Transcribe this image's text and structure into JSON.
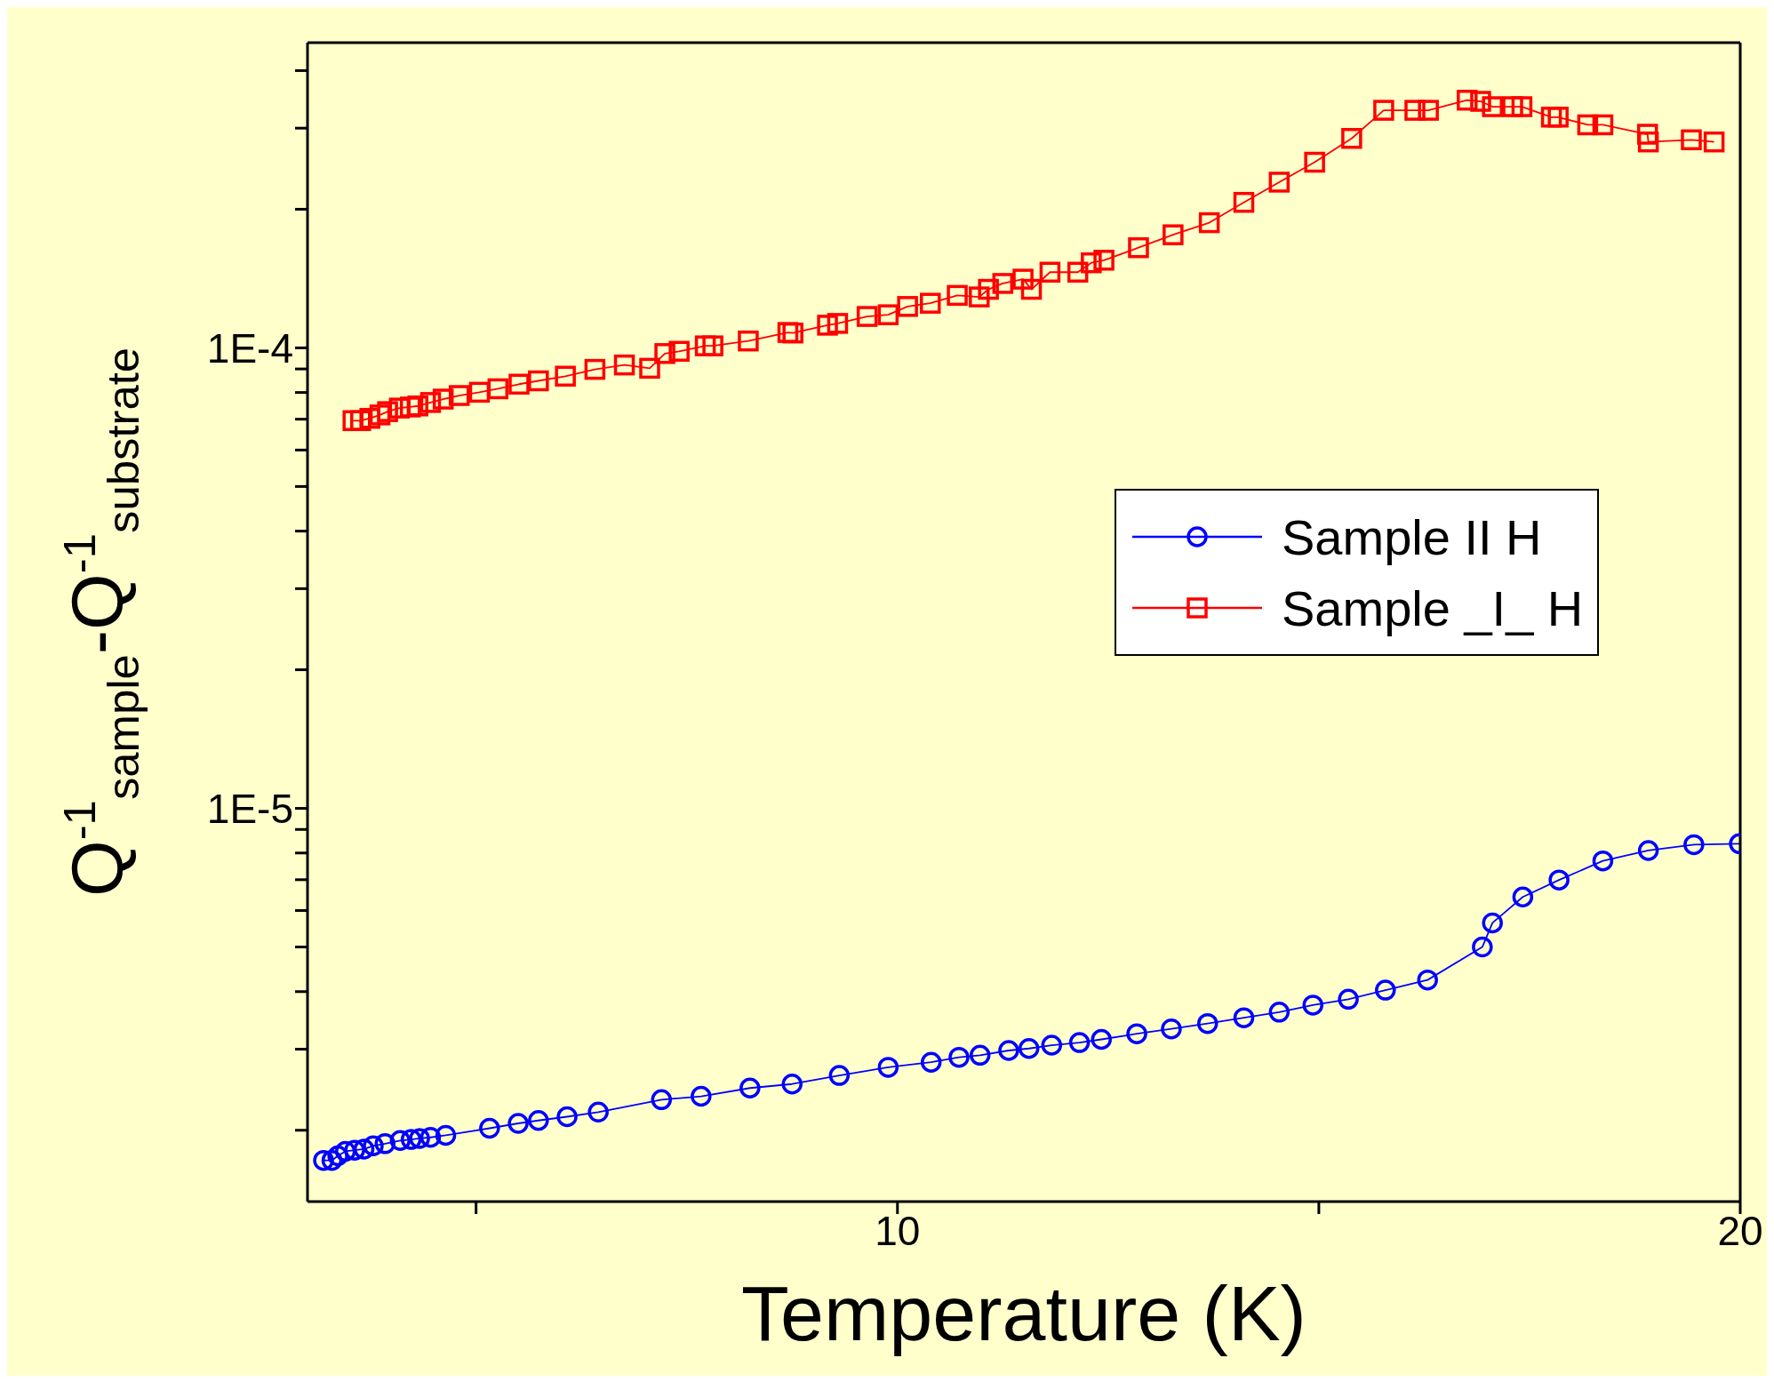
{
  "chart_data": {
    "type": "line",
    "xlabel": "Temperature (K)",
    "ylabel": "Q$^{-1}$$_{sample}$-Q$^{-1}$$_{substrate}$",
    "xlim": [
      3,
      20
    ],
    "xticks": [
      {
        "value": 5,
        "label": null
      },
      10,
      {
        "value": 15,
        "label": null
      },
      20
    ],
    "log": "y",
    "ylim": [
      1.4e-06,
      0.00046
    ],
    "yticks": [
      {
        "value": 2e-06,
        "label": null
      },
      {
        "value": 3e-06,
        "label": null
      },
      {
        "value": 4e-06,
        "label": null
      },
      {
        "value": 5e-06,
        "label": null
      },
      {
        "value": 6e-06,
        "label": null
      },
      {
        "value": 7e-06,
        "label": null
      },
      {
        "value": 8e-06,
        "label": null
      },
      {
        "value": 9e-06,
        "label": null
      },
      {
        "value": 1e-05,
        "label": "1E-5"
      },
      {
        "value": 2e-05,
        "label": null
      },
      {
        "value": 3e-05,
        "label": null
      },
      {
        "value": 4e-05,
        "label": null
      },
      {
        "value": 5e-05,
        "label": null
      },
      {
        "value": 6e-05,
        "label": null
      },
      {
        "value": 7e-05,
        "label": null
      },
      {
        "value": 8e-05,
        "label": null
      },
      {
        "value": 9e-05,
        "label": null
      },
      {
        "value": 0.0001,
        "label": "1E-4"
      },
      {
        "value": 0.0002,
        "label": null
      },
      {
        "value": 0.0003,
        "label": null
      },
      {
        "value": 0.0004,
        "label": null
      }
    ],
    "legend": "right",
    "line_style": "solid",
    "series": [
      {
        "name": "Sample II H",
        "color": "#0000ff",
        "marker": "circle",
        "x": [
          3.19,
          3.29,
          3.36,
          3.45,
          3.56,
          3.67,
          3.78,
          3.92,
          4.1,
          4.23,
          4.33,
          4.46,
          4.64,
          5.16,
          5.5,
          5.74,
          6.08,
          6.45,
          7.2,
          7.67,
          8.25,
          8.75,
          9.31,
          9.89,
          10.4,
          10.73,
          10.98,
          11.32,
          11.56,
          11.83,
          12.16,
          12.42,
          12.84,
          13.25,
          13.68,
          14.11,
          14.53,
          14.93,
          15.35,
          15.79,
          16.29,
          16.94,
          17.06,
          17.42,
          17.85,
          18.37,
          18.91,
          19.45,
          19.99
        ],
        "values": [
          1.72e-06,
          1.72e-06,
          1.76e-06,
          1.8e-06,
          1.81e-06,
          1.82e-06,
          1.85e-06,
          1.87e-06,
          1.9e-06,
          1.91e-06,
          1.92e-06,
          1.93e-06,
          1.95e-06,
          2.02e-06,
          2.07e-06,
          2.1e-06,
          2.14e-06,
          2.19e-06,
          2.33e-06,
          2.37e-06,
          2.47e-06,
          2.52e-06,
          2.63e-06,
          2.74e-06,
          2.81e-06,
          2.88e-06,
          2.91e-06,
          2.98e-06,
          3.01e-06,
          3.06e-06,
          3.1e-06,
          3.15e-06,
          3.24e-06,
          3.32e-06,
          3.41e-06,
          3.51e-06,
          3.61e-06,
          3.74e-06,
          3.85e-06,
          4.03e-06,
          4.24e-06,
          5e-06,
          5.64e-06,
          6.42e-06,
          6.99e-06,
          7.69e-06,
          8.1e-06,
          8.34e-06,
          8.38e-06
        ]
      },
      {
        "name": "Sample _I_ H",
        "color": "#ff0000",
        "marker": "square",
        "x": [
          3.54,
          3.63,
          3.74,
          3.86,
          3.95,
          4.09,
          4.22,
          4.31,
          4.46,
          4.61,
          4.8,
          5.04,
          5.26,
          5.51,
          5.74,
          6.06,
          6.41,
          6.76,
          7.06,
          7.24,
          7.41,
          7.72,
          7.81,
          8.23,
          8.7,
          8.76,
          9.17,
          9.29,
          9.64,
          9.89,
          10.12,
          10.39,
          10.71,
          10.97,
          11.08,
          11.25,
          11.49,
          11.59,
          11.81,
          12.14,
          12.3,
          12.45,
          12.86,
          13.27,
          13.7,
          14.11,
          14.53,
          14.95,
          15.39,
          15.77,
          16.14,
          16.3,
          16.76,
          16.92,
          17.06,
          17.3,
          17.41,
          17.76,
          17.84,
          18.19,
          18.37,
          18.9,
          18.91,
          19.42,
          19.69
        ],
        "values": [
          6.95e-05,
          6.95e-05,
          7.03e-05,
          7.15e-05,
          7.27e-05,
          7.4e-05,
          7.44e-05,
          7.48e-05,
          7.61e-05,
          7.74e-05,
          7.88e-05,
          8.01e-05,
          8.15e-05,
          8.34e-05,
          8.48e-05,
          8.68e-05,
          8.98e-05,
          9.18e-05,
          9.03e-05,
          9.72e-05,
          9.83e-05,
          0.000101,
          0.000101,
          0.0001035,
          0.000108,
          0.0001077,
          0.000112,
          0.000113,
          0.000117,
          0.000118,
          0.000123,
          0.000125,
          0.00013,
          0.000129,
          0.000134,
          0.000138,
          0.000141,
          0.000134,
          0.000146,
          0.000146,
          0.000153,
          0.000155,
          0.000165,
          0.000176,
          0.000187,
          0.000207,
          0.000229,
          0.000253,
          0.000285,
          0.000328,
          0.000328,
          0.000328,
          0.000345,
          0.000343,
          0.000334,
          0.000334,
          0.000334,
          0.000317,
          0.000317,
          0.000305,
          0.000305,
          0.000291,
          0.00028,
          0.000283,
          0.00028
        ]
      }
    ]
  }
}
